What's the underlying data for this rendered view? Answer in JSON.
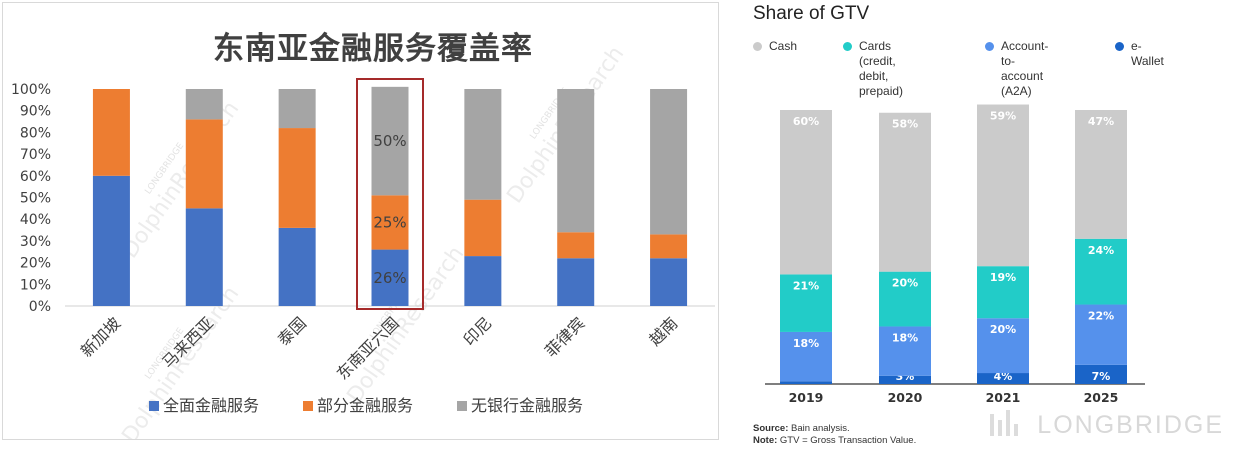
{
  "chart_data": [
    {
      "type": "bar",
      "stacked": true,
      "title": "东南亚金融服务覆盖率",
      "categories": [
        "新加坡",
        "马来西亚",
        "泰国",
        "东南亚六国",
        "印尼",
        "菲律宾",
        "越南"
      ],
      "series": [
        {
          "name": "全面金融服务",
          "color": "#4472C4",
          "values": [
            60,
            45,
            36,
            26,
            23,
            22,
            22
          ]
        },
        {
          "name": "部分金融服务",
          "color": "#ED7D31",
          "values": [
            40,
            41,
            46,
            25,
            26,
            12,
            11
          ]
        },
        {
          "name": "无银行金融服务",
          "color": "#A5A5A5",
          "values": [
            0,
            14,
            18,
            50,
            51,
            66,
            67
          ]
        }
      ],
      "ylim": [
        0,
        100
      ],
      "yticks": [
        "0%",
        "10%",
        "20%",
        "30%",
        "40%",
        "50%",
        "60%",
        "70%",
        "80%",
        "90%",
        "100%"
      ],
      "highlight": {
        "category": "东南亚六国",
        "labels": [
          "26%",
          "25%",
          "50%"
        ]
      },
      "legend": "bottom",
      "watermark": "LONGBRIDGE DolphinResearch"
    },
    {
      "type": "bar",
      "stacked": true,
      "title": "Share of GTV",
      "categories": [
        "2019",
        "2020",
        "2021",
        "2025"
      ],
      "series": [
        {
          "name": "e-Wallet",
          "color": "#1A64C8",
          "values": [
            1,
            3,
            4,
            7
          ]
        },
        {
          "name": "Account-to-account (A2A)",
          "color": "#5591EC",
          "values": [
            18,
            18,
            20,
            22
          ]
        },
        {
          "name": "Cards (credit, debit, prepaid)",
          "color": "#22CCC8",
          "values": [
            21,
            20,
            19,
            24
          ]
        },
        {
          "name": "Cash",
          "color": "#CBCBCB",
          "values": [
            60,
            58,
            59,
            47
          ]
        }
      ],
      "data_labels": true,
      "legend": "top",
      "source": "Bain analysis.",
      "note": "GTV = Gross Transaction Value."
    }
  ],
  "left_chart": {
    "title": "东南亚金融服务覆盖率",
    "legend_items": [
      "全面金融服务",
      "部分金融服务",
      "无银行金融服务"
    ],
    "watermark_brand": "LONGBRIDGE",
    "watermark_text": "DolphinResearch"
  },
  "right_chart": {
    "title": "Share of GTV",
    "legend_items": [
      {
        "label": "Cash",
        "color": "#CBCBCB"
      },
      {
        "label": "Cards (credit,\ndebit, prepaid)",
        "color": "#22CCC8"
      },
      {
        "label": "Account-to-\naccount (A2A)",
        "color": "#5591EC"
      },
      {
        "label": "e-Wallet",
        "color": "#1A64C8"
      }
    ],
    "source_label": "Source:",
    "source_text": "Bain analysis.",
    "note_label": "Note:",
    "note_text": "GTV = Gross Transaction Value.",
    "watermark": "LONGBRIDGE"
  }
}
